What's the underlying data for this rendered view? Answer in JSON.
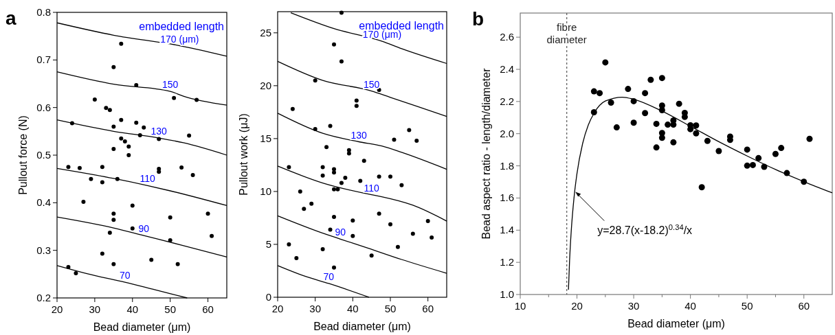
{
  "chart_data": [
    {
      "type": "scatter",
      "title": "a",
      "xlabel": "Bead diameter (μm)",
      "ylabel": "Pullout force (N)",
      "xlim": [
        20,
        65
      ],
      "ylim": [
        0.2,
        0.8
      ],
      "xticks": [
        20,
        30,
        40,
        50,
        60
      ],
      "yticks": [
        0.2,
        0.3,
        0.4,
        0.5,
        0.6,
        0.7,
        0.8
      ],
      "legend": false,
      "grid": false,
      "annotations": [
        "embedded length"
      ],
      "series": [
        {
          "type": "scatter",
          "marker": "circle",
          "color": "#000000",
          "x": [
            37,
            35,
            41,
            30,
            51,
            57,
            33,
            34,
            37,
            41,
            24,
            43,
            35,
            42,
            55,
            47,
            37,
            38,
            39,
            35,
            39,
            23,
            26,
            32,
            47,
            47,
            53,
            56,
            29,
            36,
            32,
            27,
            40,
            35,
            35,
            50,
            60,
            34,
            40,
            61,
            50,
            32,
            45,
            35,
            52,
            23,
            25
          ],
          "values": [
            0.734,
            0.685,
            0.647,
            0.617,
            0.62,
            0.616,
            0.599,
            0.595,
            0.574,
            0.568,
            0.567,
            0.558,
            0.56,
            0.542,
            0.541,
            0.534,
            0.535,
            0.529,
            0.518,
            0.513,
            0.5,
            0.475,
            0.473,
            0.475,
            0.471,
            0.465,
            0.474,
            0.458,
            0.45,
            0.45,
            0.443,
            0.402,
            0.394,
            0.377,
            0.364,
            0.369,
            0.377,
            0.337,
            0.346,
            0.33,
            0.321,
            0.293,
            0.28,
            0.271,
            0.271,
            0.265,
            0.252
          ]
        },
        {
          "type": "line",
          "name": "170 (μm)",
          "color": "#000000",
          "x": [
            20,
            35,
            52.5,
            55,
            65
          ],
          "values": [
            0.778,
            0.752,
            0.73,
            0.726,
            0.708
          ]
        },
        {
          "type": "line",
          "name": "150",
          "color": "#000000",
          "x": [
            20,
            35,
            50,
            53.5,
            65
          ],
          "values": [
            0.675,
            0.649,
            0.634,
            0.624,
            0.605
          ]
        },
        {
          "type": "line",
          "name": "130",
          "color": "#000000",
          "x": [
            20,
            35,
            47,
            53.5,
            65
          ],
          "values": [
            0.574,
            0.55,
            0.536,
            0.526,
            0.5
          ]
        },
        {
          "type": "line",
          "name": "110",
          "color": "#000000",
          "x": [
            20,
            35,
            44,
            50,
            65
          ],
          "values": [
            0.472,
            0.451,
            0.436,
            0.425,
            0.394
          ]
        },
        {
          "type": "line",
          "name": "90",
          "color": "#000000",
          "x": [
            20,
            35,
            43,
            53,
            65
          ],
          "values": [
            0.37,
            0.347,
            0.331,
            0.311,
            0.286
          ]
        },
        {
          "type": "line",
          "name": "70",
          "color": "#000000",
          "x": [
            20,
            30,
            38,
            46,
            54.5
          ],
          "values": [
            0.268,
            0.247,
            0.233,
            0.217,
            0.2
          ]
        }
      ]
    },
    {
      "type": "scatter",
      "xlabel": "Bead diameter (μm)",
      "ylabel": "Pullout work (μJ)",
      "xlim": [
        20,
        65
      ],
      "ylim": [
        0,
        27
      ],
      "xticks": [
        20,
        30,
        40,
        50,
        60
      ],
      "yticks": [
        0,
        5,
        10,
        15,
        20,
        25
      ],
      "legend": false,
      "grid": false,
      "annotations": [
        "embedded length"
      ],
      "series": [
        {
          "type": "scatter",
          "marker": "circle",
          "color": "#000000",
          "x": [
            37,
            35,
            37,
            30,
            41,
            41,
            24,
            47,
            34,
            30,
            55,
            57,
            51,
            33,
            39,
            39,
            43,
            23,
            32,
            35,
            35,
            32,
            38,
            47,
            50,
            42,
            37,
            53,
            35,
            36,
            26,
            29,
            27,
            47,
            35,
            40,
            60,
            50,
            34,
            56,
            40,
            61,
            23,
            52,
            32,
            45,
            25,
            35
          ],
          "values": [
            26.9,
            23.9,
            22.3,
            20.5,
            18.6,
            18.1,
            17.8,
            19.6,
            16.2,
            15.9,
            15.8,
            14.8,
            14.9,
            14.2,
            13.9,
            13.6,
            12.9,
            12.3,
            12.3,
            12.1,
            11.8,
            11.5,
            11.3,
            11.4,
            11.4,
            11.0,
            10.8,
            10.6,
            10.2,
            10.2,
            10.0,
            8.85,
            8.35,
            7.9,
            7.6,
            7.25,
            7.2,
            6.9,
            6.4,
            6.0,
            5.8,
            5.65,
            5.0,
            4.75,
            4.55,
            3.95,
            3.7,
            2.8
          ]
        },
        {
          "type": "line",
          "name": "170 (μm)",
          "color": "#000000",
          "x": [
            23.5,
            35,
            47.8,
            53,
            65
          ],
          "values": [
            26.9,
            25.4,
            24.2,
            23.5,
            22.1
          ]
        },
        {
          "type": "line",
          "name": "150",
          "color": "#000000",
          "x": [
            20,
            32,
            45,
            50,
            65
          ],
          "values": [
            22.3,
            20.5,
            19.5,
            18.9,
            17.1
          ]
        },
        {
          "type": "line",
          "name": "130",
          "color": "#000000",
          "x": [
            20,
            32,
            41.6,
            47.7,
            53,
            65
          ],
          "values": [
            17.4,
            15.5,
            14.7,
            14.3,
            13.7,
            12.1
          ]
        },
        {
          "type": "line",
          "name": "110",
          "color": "#000000",
          "x": [
            20,
            32,
            45,
            47.7,
            56,
            65
          ],
          "values": [
            12.4,
            10.8,
            9.69,
            9.5,
            8.7,
            7.2
          ]
        },
        {
          "type": "line",
          "name": "90",
          "color": "#000000",
          "x": [
            20,
            32,
            36.7,
            44,
            53,
            65
          ],
          "values": [
            7.7,
            6.06,
            5.5,
            4.65,
            3.57,
            2.27
          ]
        },
        {
          "type": "line",
          "name": "70",
          "color": "#000000",
          "x": [
            20,
            28,
            33.6,
            44.3
          ],
          "values": [
            3.0,
            1.9,
            1.3,
            0
          ]
        }
      ]
    },
    {
      "type": "scatter",
      "title": "b",
      "xlabel": "Bead diameter (μm)",
      "ylabel": "Bead aspect ratio - length/diameter",
      "xlim": [
        10,
        65
      ],
      "ylim": [
        1.0,
        2.75
      ],
      "xticks": [
        10,
        {
          "value": 15,
          "label": null
        },
        20,
        {
          "value": 25,
          "label": null
        },
        30,
        {
          "value": 35,
          "label": null
        },
        40,
        {
          "value": 45,
          "label": null
        },
        50,
        {
          "value": 55,
          "label": null
        },
        60
      ],
      "yticks": [
        {
          "value": 1.0,
          "label": "1.0"
        },
        1.2,
        1.4,
        1.6,
        1.8,
        {
          "value": 2.0,
          "label": "2.0"
        },
        2.2,
        2.4,
        2.6
      ],
      "legend": false,
      "grid": false,
      "ref_lines": [
        {
          "axis": "x",
          "value": 18.2,
          "label": "fibre diameter",
          "color": "#555555",
          "line_style": "dashed"
        }
      ],
      "annotations": [
        {
          "text": "y=28.7(x-18.2)$^{0.34}$/x",
          "x": 19.6,
          "y": 1.642
        }
      ],
      "series": [
        {
          "type": "scatter",
          "marker": "circle",
          "color": "#000000",
          "x": [
            25,
            23,
            24,
            23,
            26,
            27,
            29,
            30,
            30,
            32,
            32,
            33,
            34,
            34,
            35,
            35,
            35,
            35,
            35,
            36,
            37,
            37,
            37,
            38,
            39,
            39,
            40,
            40,
            41,
            41,
            42,
            43,
            45,
            47,
            47,
            50,
            50,
            51,
            52,
            53,
            55,
            56,
            57,
            60,
            61
          ],
          "values": [
            2.443,
            2.263,
            2.252,
            2.133,
            2.193,
            2.039,
            2.278,
            2.202,
            2.068,
            2.252,
            2.128,
            2.335,
            2.061,
            1.914,
            2.346,
            2.175,
            2.146,
            2.004,
            1.974,
            2.056,
            2.082,
            2.056,
            1.946,
            2.186,
            2.129,
            2.104,
            2.052,
            2.028,
            2.051,
            2.002,
            1.667,
            1.955,
            1.892,
            1.982,
            1.961,
            1.901,
            1.801,
            1.805,
            1.848,
            1.794,
            1.874,
            1.911,
            1.755,
            1.701,
            1.968
          ]
        },
        {
          "type": "line",
          "color": "#000000",
          "x": [
            18.5,
            18.7,
            19,
            19.5,
            20,
            21,
            22,
            23,
            25,
            28,
            30,
            35,
            40,
            45,
            50,
            55,
            60,
            65
          ],
          "values": [
            1.03,
            1.212,
            1.4,
            1.609,
            1.752,
            1.939,
            2.054,
            2.127,
            2.203,
            2.227,
            2.214,
            2.14,
            2.046,
            1.95,
            1.861,
            1.777,
            1.702,
            1.632
          ]
        }
      ]
    }
  ]
}
